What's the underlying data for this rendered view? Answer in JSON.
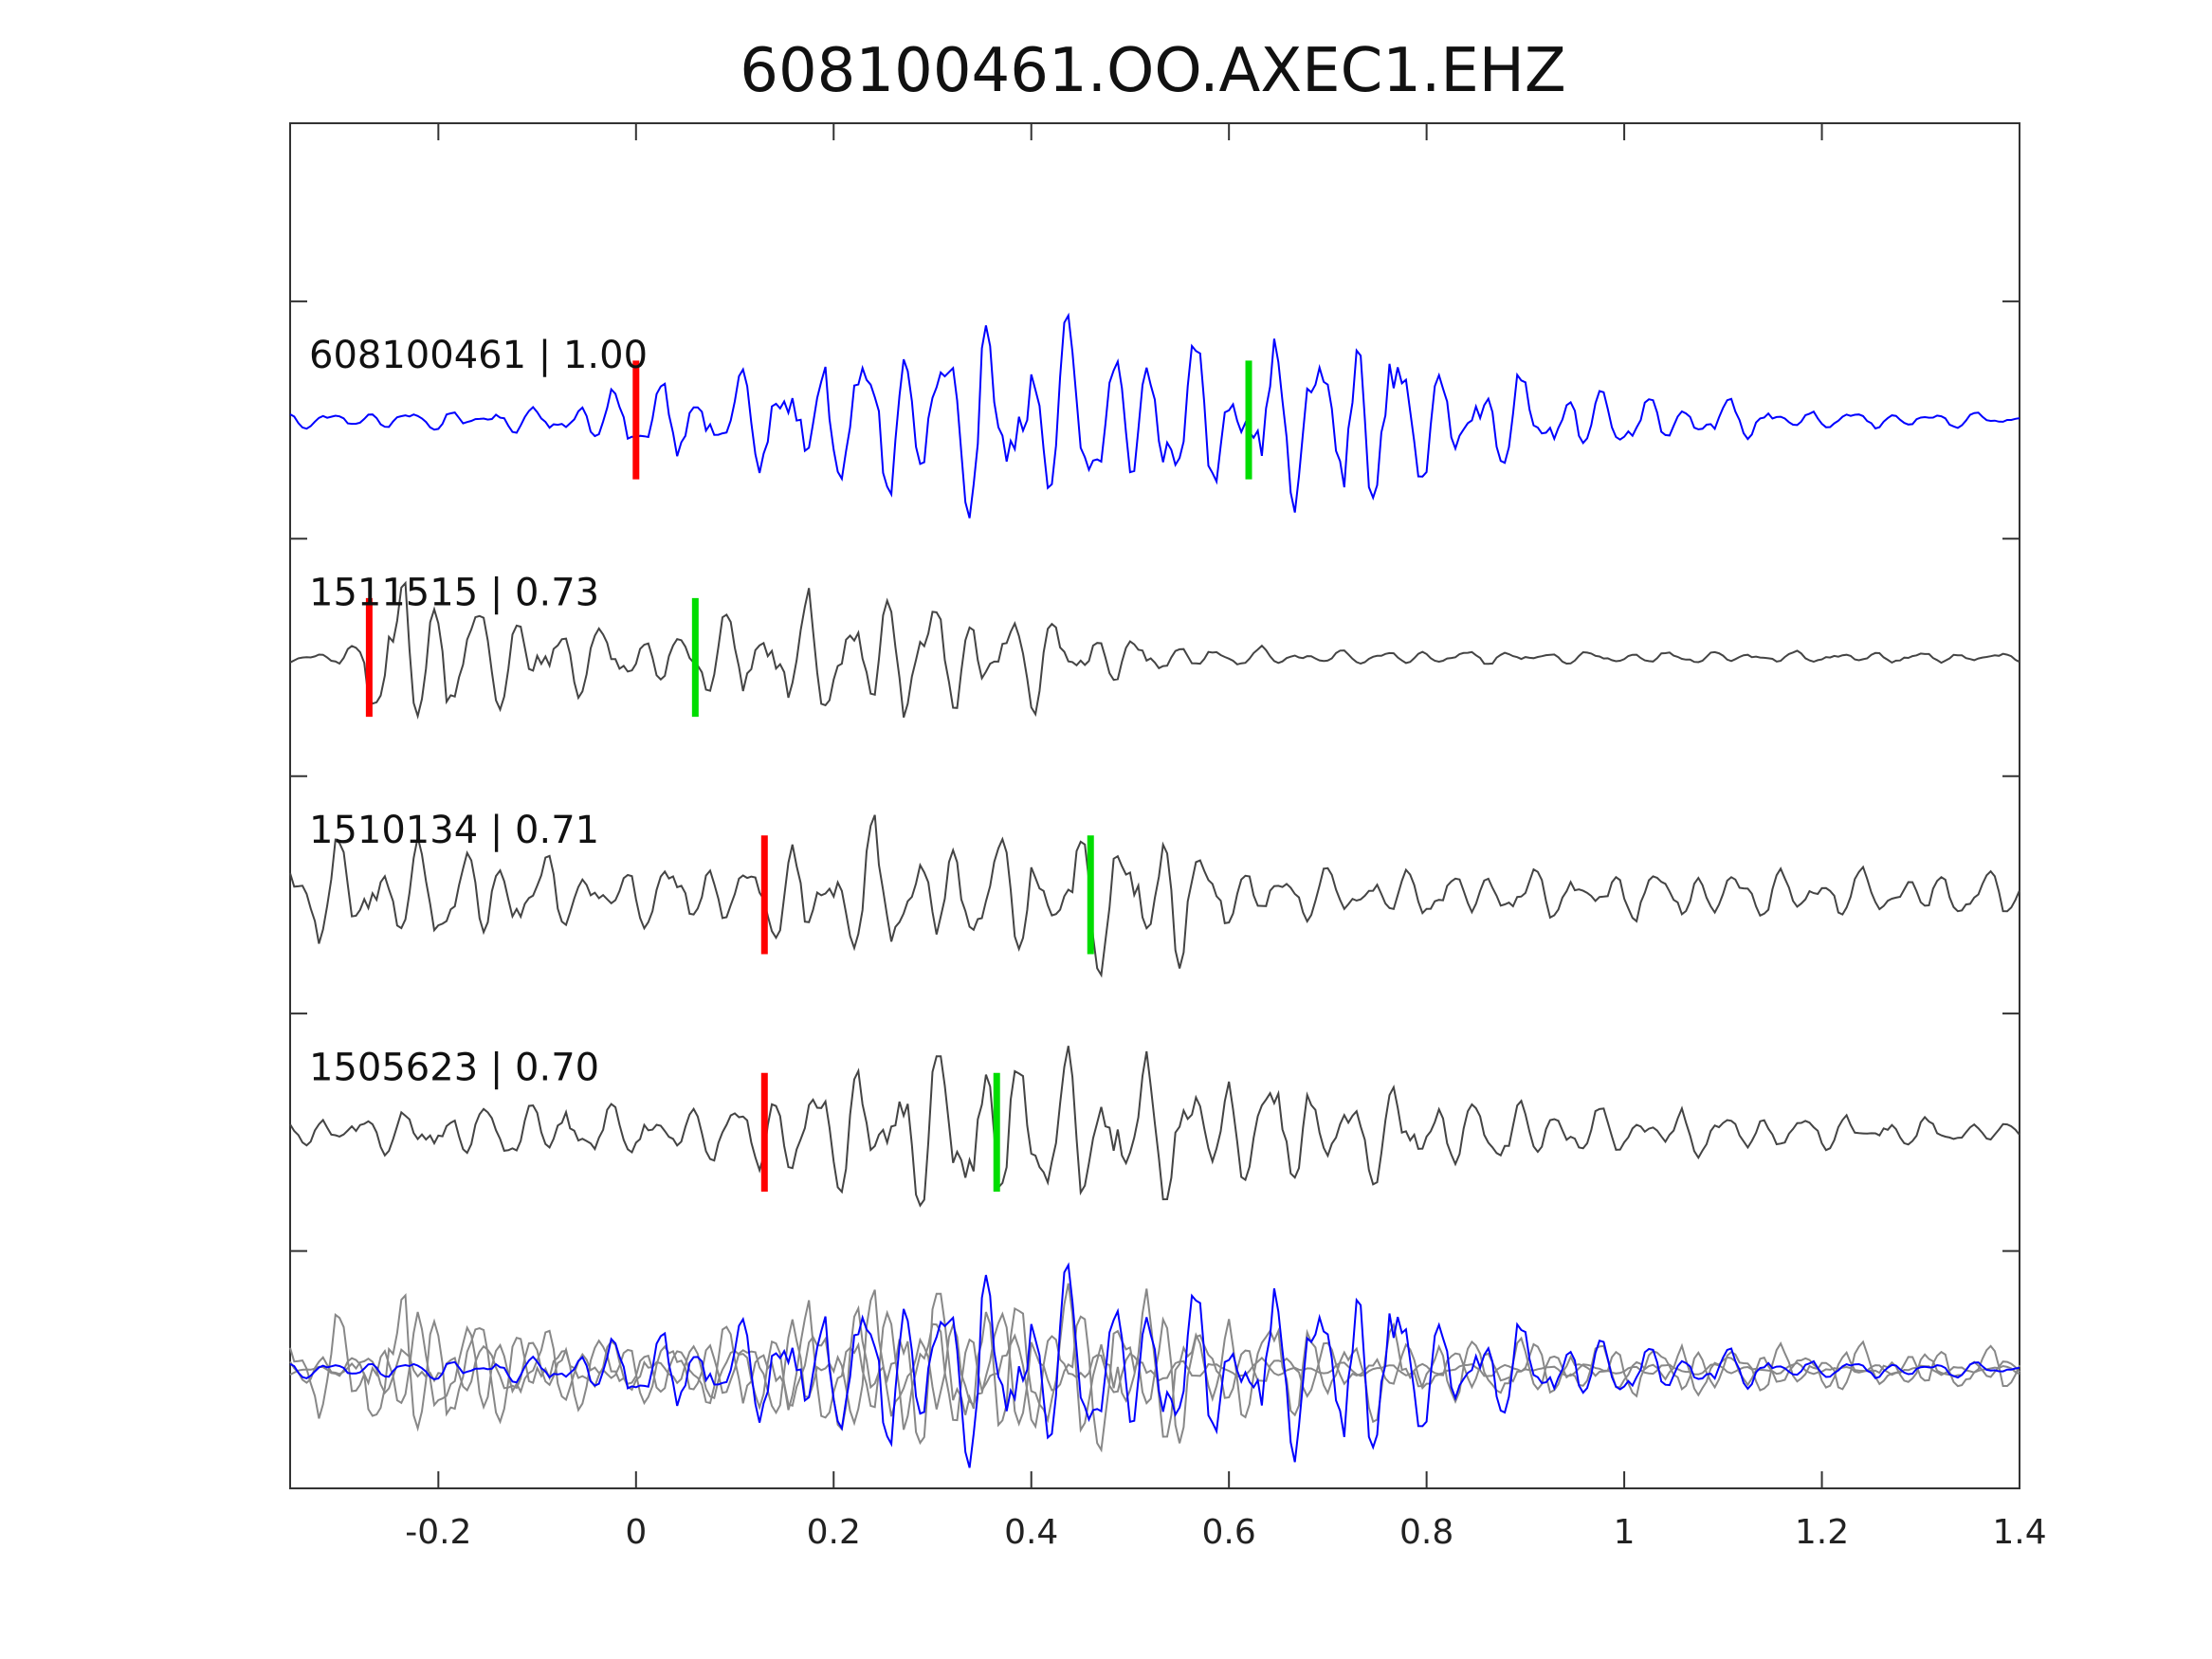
{
  "chart_data": {
    "type": "line",
    "title": "608100461.OO.AXEC1.EHZ",
    "xlabel": "",
    "ylabel": "",
    "xlim": [
      -0.35,
      1.4
    ],
    "ylim": [
      -5.5,
      0.25
    ],
    "x_ticks": [
      -0.2,
      0,
      0.2,
      0.4,
      0.6,
      0.8,
      1,
      1.2,
      1.4
    ],
    "x_tick_labels": [
      "-0.2",
      "0",
      "0.2",
      "0.4",
      "0.6",
      "0.8",
      "1",
      "1.2",
      "1.4"
    ],
    "y_ticks": [
      -0.5,
      -1.5,
      -2.5,
      -3.5,
      -4.5,
      -5.5
    ],
    "grid": false,
    "legend": "none",
    "colors": {
      "master": "#0000ff",
      "neighbor": "#444444",
      "overlay_neighbor": "#888888",
      "p_pick": "#ff0000",
      "s_pick": "#00dd00"
    },
    "series": [
      {
        "label": "608100461 | 1.00",
        "baseline": -1,
        "color": "#0000ff",
        "p_pick": 0.0,
        "s_pick": 0.62,
        "envelope": [
          [
            -0.35,
            0.03
          ],
          [
            -0.1,
            0.05
          ],
          [
            0.0,
            0.15
          ],
          [
            0.05,
            0.18
          ],
          [
            0.15,
            0.22
          ],
          [
            0.25,
            0.35
          ],
          [
            0.35,
            0.48
          ],
          [
            0.42,
            0.42
          ],
          [
            0.5,
            0.32
          ],
          [
            0.6,
            0.3
          ],
          [
            0.7,
            0.38
          ],
          [
            0.75,
            0.45
          ],
          [
            0.8,
            0.25
          ],
          [
            0.9,
            0.18
          ],
          [
            1.0,
            0.12
          ],
          [
            1.1,
            0.08
          ],
          [
            1.2,
            0.04
          ],
          [
            1.4,
            0.03
          ]
        ]
      },
      {
        "label": "1511515 | 0.73",
        "baseline": -2,
        "color": "#444444",
        "p_pick": -0.27,
        "s_pick": 0.06,
        "envelope": [
          [
            -0.35,
            0.03
          ],
          [
            -0.28,
            0.05
          ],
          [
            -0.25,
            0.5
          ],
          [
            -0.2,
            0.3
          ],
          [
            -0.1,
            0.18
          ],
          [
            0.0,
            0.12
          ],
          [
            0.05,
            0.12
          ],
          [
            0.1,
            0.22
          ],
          [
            0.2,
            0.25
          ],
          [
            0.3,
            0.26
          ],
          [
            0.4,
            0.2
          ],
          [
            0.45,
            0.15
          ],
          [
            0.5,
            0.08
          ],
          [
            0.55,
            0.05
          ],
          [
            0.7,
            0.03
          ],
          [
            1.4,
            0.02
          ]
        ]
      },
      {
        "label": "1510134 | 0.71",
        "baseline": -3,
        "color": "#444444",
        "p_pick": 0.13,
        "s_pick": 0.46,
        "envelope": [
          [
            -0.35,
            0.2
          ],
          [
            -0.25,
            0.22
          ],
          [
            -0.15,
            0.2
          ],
          [
            -0.05,
            0.12
          ],
          [
            0.1,
            0.15
          ],
          [
            0.15,
            0.22
          ],
          [
            0.25,
            0.3
          ],
          [
            0.35,
            0.22
          ],
          [
            0.45,
            0.25
          ],
          [
            0.5,
            0.33
          ],
          [
            0.55,
            0.3
          ],
          [
            0.6,
            0.12
          ],
          [
            0.8,
            0.1
          ],
          [
            1.0,
            0.1
          ],
          [
            1.2,
            0.1
          ],
          [
            1.4,
            0.1
          ]
        ]
      },
      {
        "label": "1505623 | 0.70",
        "baseline": -4,
        "color": "#444444",
        "p_pick": 0.13,
        "s_pick": 0.365,
        "envelope": [
          [
            -0.35,
            0.05
          ],
          [
            -0.2,
            0.1
          ],
          [
            -0.1,
            0.14
          ],
          [
            0.0,
            0.1
          ],
          [
            0.1,
            0.15
          ],
          [
            0.15,
            0.2
          ],
          [
            0.25,
            0.3
          ],
          [
            0.35,
            0.35
          ],
          [
            0.4,
            0.38
          ],
          [
            0.5,
            0.3
          ],
          [
            0.6,
            0.25
          ],
          [
            0.7,
            0.22
          ],
          [
            0.8,
            0.16
          ],
          [
            1.0,
            0.1
          ],
          [
            1.2,
            0.08
          ],
          [
            1.4,
            0.04
          ]
        ]
      }
    ],
    "overlay": {
      "baseline": -5,
      "description_of_members": [
        "1511515 | 0.73",
        "1510134 | 0.71",
        "1505623 | 0.70",
        "608100461 | 1.00"
      ]
    }
  }
}
